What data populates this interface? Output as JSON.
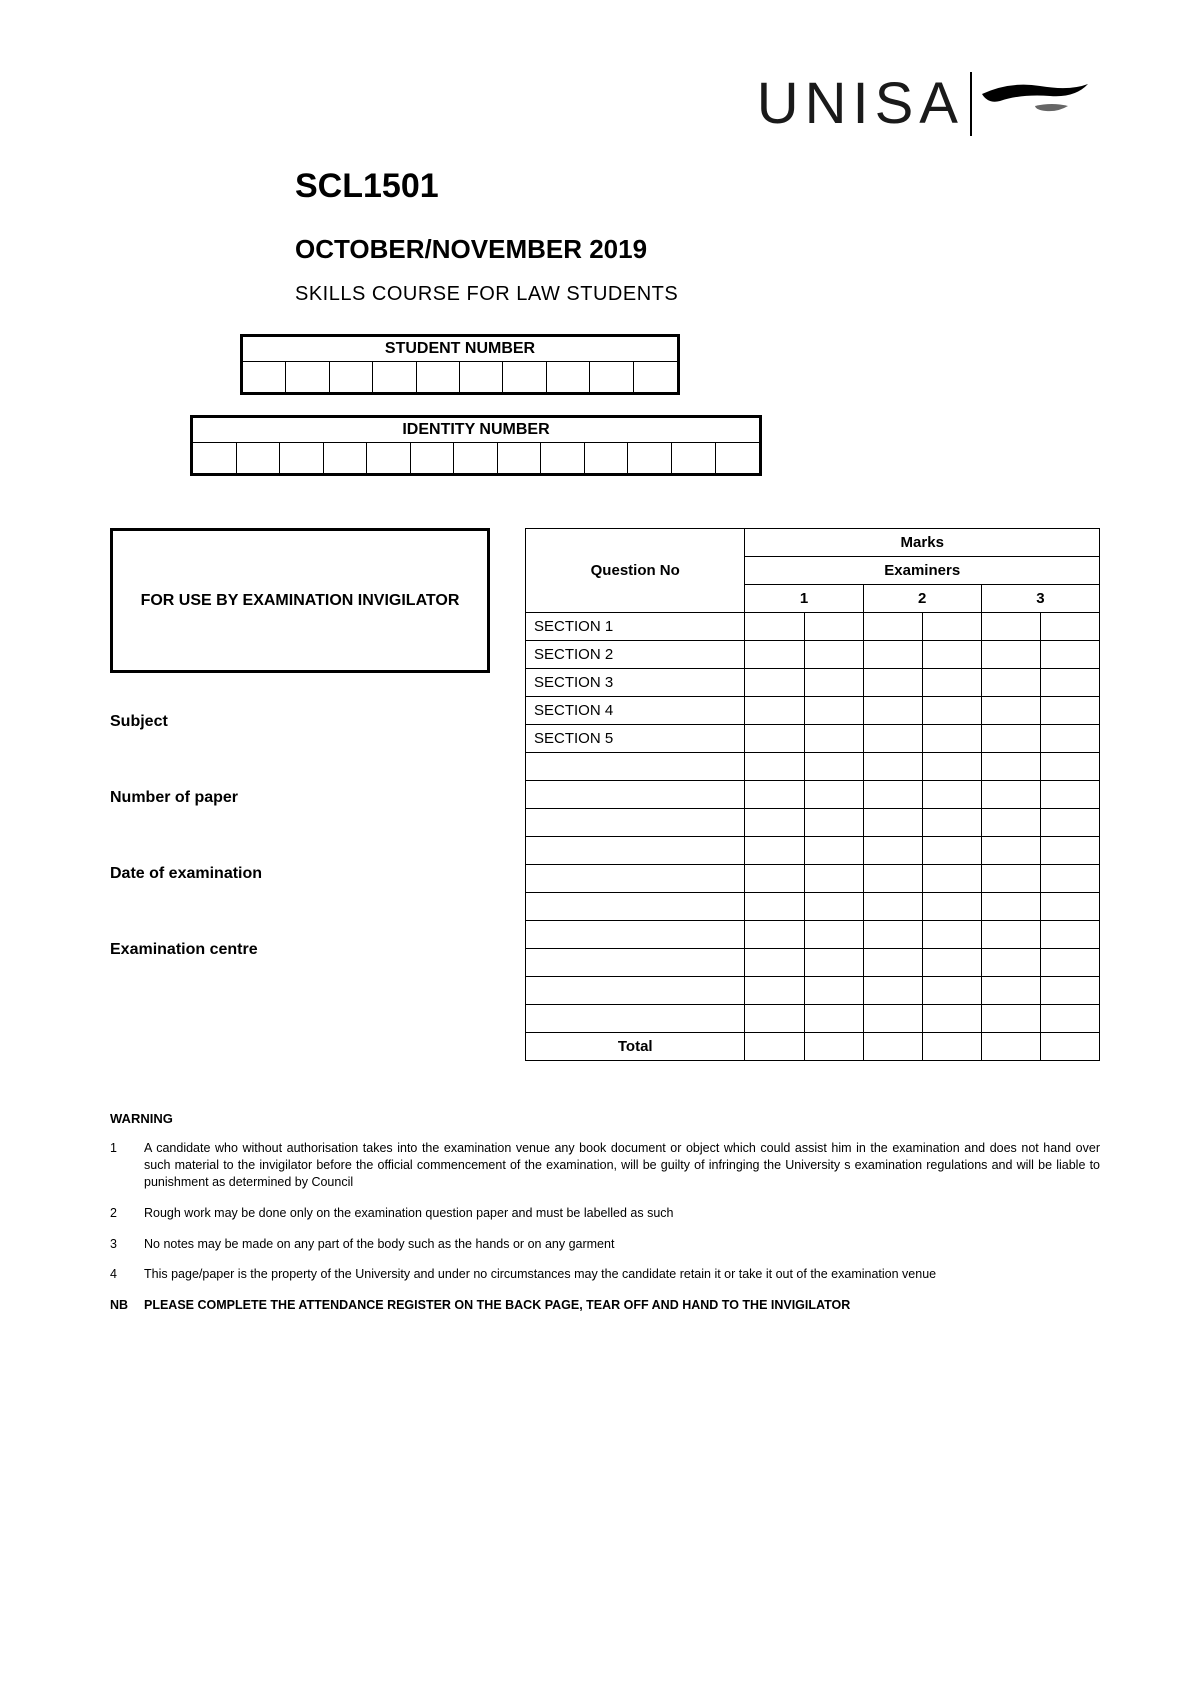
{
  "logo": {
    "text": "UNISA"
  },
  "header": {
    "course_code": "SCL1501",
    "exam_period": "OCTOBER/NOVEMBER 2019",
    "course_name": "SKILLS COURSE FOR LAW STUDENTS"
  },
  "student_number": {
    "label": "STUDENT NUMBER",
    "cell_count": 10
  },
  "identity_number": {
    "label": "IDENTITY NUMBER",
    "cell_count": 13
  },
  "invigilator_box": {
    "text": "FOR USE BY EXAMINATION INVIGILATOR"
  },
  "fields": {
    "subject": "Subject",
    "number_of_paper": "Number of paper",
    "date_of_examination": "Date of examination",
    "examination_centre": "Examination centre"
  },
  "marks_table": {
    "marks_header": "Marks",
    "question_no_header": "Question No",
    "examiners_header": "Examiners",
    "examiner_cols": [
      "1",
      "2",
      "3"
    ],
    "sections": [
      "SECTION 1",
      "SECTION 2",
      "SECTION 3",
      "SECTION 4",
      "SECTION 5"
    ],
    "blank_rows": 10,
    "total_label": "Total"
  },
  "warning": {
    "title": "WARNING",
    "items": [
      {
        "num": "1",
        "text": "A candidate who without authorisation takes into the examination venue any book document or object which could assist him in the examination and does not hand over such material to the invigilator before the official commencement of the examination, will be guilty of infringing the University s examination regulations and will be liable to punishment as determined by Council"
      },
      {
        "num": "2",
        "text": "Rough work may be done only on the examination question paper and must be labelled as such"
      },
      {
        "num": "3",
        "text": "No notes may be made on any part of the body such as the hands or on any garment"
      },
      {
        "num": "4",
        "text": "This page/paper is the property of the University and under no circumstances may the candidate retain it or take it out of the examination venue"
      }
    ],
    "nb": {
      "num": "NB",
      "text": "PLEASE COMPLETE THE ATTENDANCE REGISTER ON THE BACK PAGE, TEAR OFF AND HAND TO THE INVIGILATOR"
    }
  },
  "colors": {
    "text": "#000000",
    "background": "#ffffff",
    "border": "#000000"
  }
}
